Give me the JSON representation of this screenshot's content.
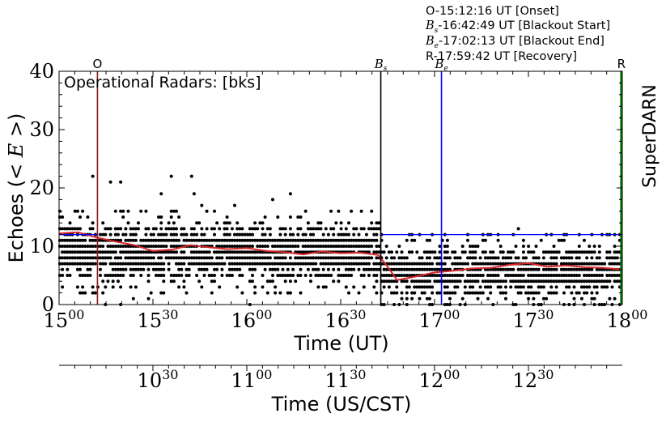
{
  "annotations": {
    "onset": "O-15:12:16 UT [Onset]",
    "bs_label": "B",
    "bs_sub": "s",
    "blackout_start": "-16:42:49 UT [Blackout Start]",
    "be_label": "B",
    "be_sub": "e",
    "blackout_end": "-17:02:13 UT [Blackout End]",
    "recovery": "R-17:59:42 UT [Recovery]"
  },
  "top_markers": {
    "O": "O",
    "Bs": "B",
    "Bs_sub": "s",
    "Be": "B",
    "Be_sub": "e",
    "R": "R"
  },
  "legend_text": "Operational Radars: [bks]",
  "side_label": "SuperDARN",
  "ylabel_text": "Echoes (",
  "ylabel_math": "< E >",
  "ylabel_close": ")",
  "xlabel_ut": "Time (UT)",
  "xlabel_cst": "Time (US/CST)",
  "colors": {
    "onset": "#8b1a1a",
    "blackout_start": "#000000",
    "blackout_end": "#0000ff",
    "recovery": "#008000",
    "mean_line": "#d62728",
    "points": "#000000",
    "hline": "#0000ff"
  },
  "chart_data": {
    "type": "scatter",
    "xlim": [
      15.0,
      18.0
    ],
    "ylim": [
      0,
      40
    ],
    "yticks": [
      "0",
      "10",
      "20",
      "30",
      "40"
    ],
    "xticks_ut": [
      {
        "v": 15.0,
        "base": "15",
        "sup": "00"
      },
      {
        "v": 15.5,
        "base": "15",
        "sup": "30"
      },
      {
        "v": 16.0,
        "base": "16",
        "sup": "00"
      },
      {
        "v": 16.5,
        "base": "16",
        "sup": "30"
      },
      {
        "v": 17.0,
        "base": "17",
        "sup": "00"
      },
      {
        "v": 17.5,
        "base": "17",
        "sup": "30"
      },
      {
        "v": 18.0,
        "base": "18",
        "sup": "00"
      }
    ],
    "xticks_cst": [
      {
        "v": 15.5,
        "base": "10",
        "sup": "30"
      },
      {
        "v": 16.0,
        "base": "11",
        "sup": "00"
      },
      {
        "v": 16.5,
        "base": "11",
        "sup": "30"
      },
      {
        "v": 17.0,
        "base": "12",
        "sup": "00"
      },
      {
        "v": 17.5,
        "base": "12",
        "sup": "30"
      }
    ],
    "vlines": [
      {
        "name": "O",
        "x": 15.2044
      },
      {
        "name": "Bs",
        "x": 16.7136
      },
      {
        "name": "Be",
        "x": 17.0369
      },
      {
        "name": "R",
        "x": 17.995
      }
    ],
    "hline_y": 12,
    "hline_from": 16.7136,
    "mean_series": {
      "x": [
        15.0,
        15.1,
        15.2,
        15.3,
        15.4,
        15.5,
        15.6,
        15.7,
        15.8,
        15.9,
        16.0,
        16.1,
        16.2,
        16.3,
        16.4,
        16.5,
        16.6,
        16.7,
        16.75,
        16.8,
        16.9,
        17.0,
        17.1,
        17.2,
        17.3,
        17.4,
        17.5,
        17.6,
        17.7,
        17.8,
        17.9,
        18.0
      ],
      "y": [
        12.2,
        12.4,
        11.5,
        10.8,
        10.2,
        9.2,
        9.4,
        10.2,
        9.8,
        9.5,
        9.7,
        9.2,
        9.0,
        8.6,
        9.1,
        8.8,
        8.9,
        8.5,
        6.5,
        4.2,
        4.8,
        5.5,
        5.8,
        6.2,
        6.3,
        6.8,
        7.1,
        6.5,
        6.7,
        6.4,
        6.3,
        6.0
      ]
    },
    "scatter_bands": [
      {
        "x0": 15.0,
        "x1": 16.7136,
        "center": 9,
        "spread": 4.5,
        "max_outlier": 22
      },
      {
        "x0": 16.7136,
        "x1": 18.0,
        "center": 5.5,
        "spread": 3.5,
        "max_outlier": 13
      }
    ]
  }
}
